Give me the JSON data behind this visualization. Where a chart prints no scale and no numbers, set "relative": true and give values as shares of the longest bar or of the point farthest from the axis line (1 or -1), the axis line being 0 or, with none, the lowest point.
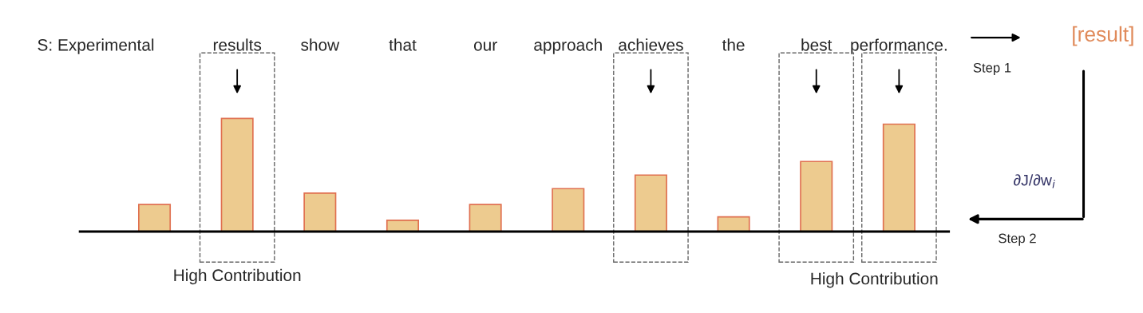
{
  "chart_data": {
    "type": "bar",
    "relative": true,
    "categories": [
      "S: Experimental",
      "results",
      "show",
      "that",
      "our",
      "approach",
      "achieves",
      "the",
      "best",
      "performance."
    ],
    "values": [
      0.24,
      1,
      0.34,
      0.1,
      0.24,
      0.38,
      0.5,
      0.13,
      0.62,
      0.95
    ],
    "color": "#edcb8f",
    "annotations": [
      "High Contribution",
      "High Contribution",
      "[result]",
      "Step 1",
      "Step 2",
      "∂J/∂w$_{i}$"
    ]
  }
}
